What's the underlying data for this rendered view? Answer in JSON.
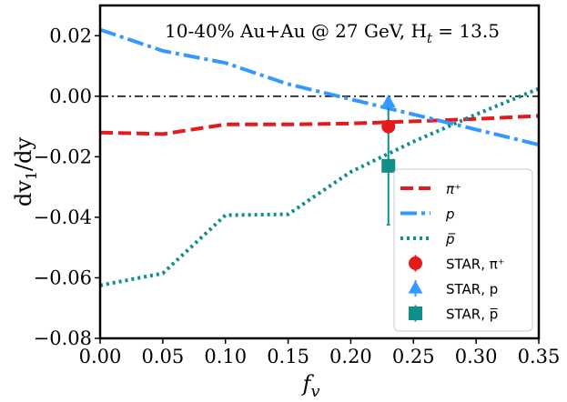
{
  "chart_data": {
    "type": "line",
    "title": "10-40% Au+Au @ 27 GeV, H",
    "title_sub": "t",
    "title_tail": " = 13.5",
    "xlabel": "f",
    "xlabel_sub": "v",
    "ylabel": "dv",
    "ylabel_sub": "1",
    "ylabel_tail": "/dy",
    "xlim": [
      0.0,
      0.35
    ],
    "ylim": [
      -0.08,
      0.03
    ],
    "xticks": [
      "0.00",
      "0.05",
      "0.10",
      "0.15",
      "0.20",
      "0.25",
      "0.30",
      "0.35"
    ],
    "yticks": [
      "0.02",
      "0.00",
      "−0.02",
      "−0.04",
      "−0.06",
      "−0.08"
    ],
    "ytick_values": [
      0.02,
      0.0,
      -0.02,
      -0.04,
      -0.06,
      -0.08
    ],
    "xtick_values": [
      0.0,
      0.05,
      0.1,
      0.15,
      0.2,
      0.25,
      0.3,
      0.35
    ],
    "reference_line": {
      "y": 0.0,
      "style": "dash-dot",
      "color": "#000000"
    },
    "grid": false,
    "legend_position": "lower-right",
    "series": [
      {
        "name": "π⁺",
        "style": "dashed",
        "color": "#e41a1c",
        "x": [
          0.0,
          0.05,
          0.1,
          0.15,
          0.2,
          0.25,
          0.3,
          0.35
        ],
        "y": [
          -0.012,
          -0.0125,
          -0.0093,
          -0.0093,
          -0.009,
          -0.0083,
          -0.0075,
          -0.0065
        ]
      },
      {
        "name": "p",
        "style": "dashdot",
        "color": "#3399ff",
        "x": [
          0.0,
          0.05,
          0.1,
          0.15,
          0.2,
          0.25,
          0.3,
          0.35
        ],
        "y": [
          0.022,
          0.015,
          0.011,
          0.004,
          -0.001,
          -0.006,
          -0.011,
          -0.016
        ]
      },
      {
        "name": "p̅",
        "style": "dotted",
        "color": "#0f8f8a",
        "x": [
          0.0,
          0.05,
          0.1,
          0.15,
          0.2,
          0.25,
          0.3,
          0.35
        ],
        "y": [
          -0.0625,
          -0.0585,
          -0.0393,
          -0.039,
          -0.025,
          -0.015,
          -0.006,
          0.0025
        ]
      }
    ],
    "points": [
      {
        "name": "STAR, π⁺",
        "marker": "circle",
        "color": "#e41a1c",
        "x": 0.23,
        "y": -0.01,
        "err": 0.001
      },
      {
        "name": "STAR, p",
        "marker": "triangle",
        "color": "#3399ff",
        "x": 0.23,
        "y": -0.002,
        "err": 0.0015
      },
      {
        "name": "STAR, p̅",
        "marker": "square",
        "color": "#0f8f8a",
        "x": 0.23,
        "y": -0.023,
        "err": 0.0195
      }
    ],
    "legend": [
      "π⁺",
      "p",
      "p̅",
      "STAR, π⁺",
      "STAR, p",
      "STAR, p̅"
    ]
  }
}
